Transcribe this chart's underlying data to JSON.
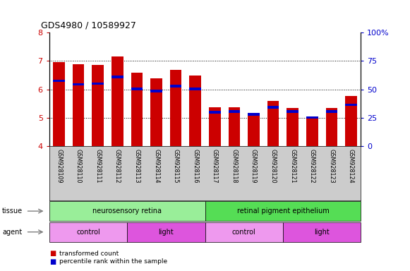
{
  "title": "GDS4980 / 10589927",
  "samples": [
    "GSM928109",
    "GSM928110",
    "GSM928111",
    "GSM928112",
    "GSM928113",
    "GSM928114",
    "GSM928115",
    "GSM928116",
    "GSM928117",
    "GSM928118",
    "GSM928119",
    "GSM928120",
    "GSM928121",
    "GSM928122",
    "GSM928123",
    "GSM928124"
  ],
  "red_values": [
    6.97,
    6.88,
    6.87,
    7.15,
    6.59,
    6.38,
    6.68,
    6.48,
    5.37,
    5.37,
    5.18,
    5.6,
    5.35,
    4.99,
    5.35,
    5.76
  ],
  "blue_values": [
    6.3,
    6.18,
    6.2,
    6.44,
    6.02,
    5.95,
    6.12,
    6.02,
    5.2,
    5.22,
    5.12,
    5.38,
    5.22,
    5.01,
    5.22,
    5.46
  ],
  "ylim_left": [
    4.0,
    8.0
  ],
  "ylim_right": [
    0,
    100
  ],
  "yticks_left": [
    4,
    5,
    6,
    7,
    8
  ],
  "yticks_right": [
    0,
    25,
    50,
    75,
    100
  ],
  "ytick_labels_right": [
    "0",
    "25",
    "50",
    "75",
    "100%"
  ],
  "grid_values": [
    5,
    6,
    7
  ],
  "bar_color": "#cc0000",
  "blue_color": "#0000cc",
  "bar_bottom": 4.0,
  "tissue_groups": [
    {
      "label": "neurosensory retina",
      "start": 0,
      "end": 8,
      "color": "#99ee99"
    },
    {
      "label": "retinal pigment epithelium",
      "start": 8,
      "end": 16,
      "color": "#55dd55"
    }
  ],
  "agent_groups": [
    {
      "label": "control",
      "start": 0,
      "end": 4,
      "color": "#ee99ee"
    },
    {
      "label": "light",
      "start": 4,
      "end": 8,
      "color": "#dd55dd"
    },
    {
      "label": "control",
      "start": 8,
      "end": 12,
      "color": "#ee99ee"
    },
    {
      "label": "light",
      "start": 12,
      "end": 16,
      "color": "#dd55dd"
    }
  ],
  "legend_items": [
    {
      "label": "transformed count",
      "color": "#cc0000"
    },
    {
      "label": "percentile rank within the sample",
      "color": "#0000cc"
    }
  ],
  "tick_label_color_left": "#cc0000",
  "tick_label_color_right": "#0000cc",
  "background_color": "#ffffff",
  "xticklabel_bg": "#cccccc"
}
